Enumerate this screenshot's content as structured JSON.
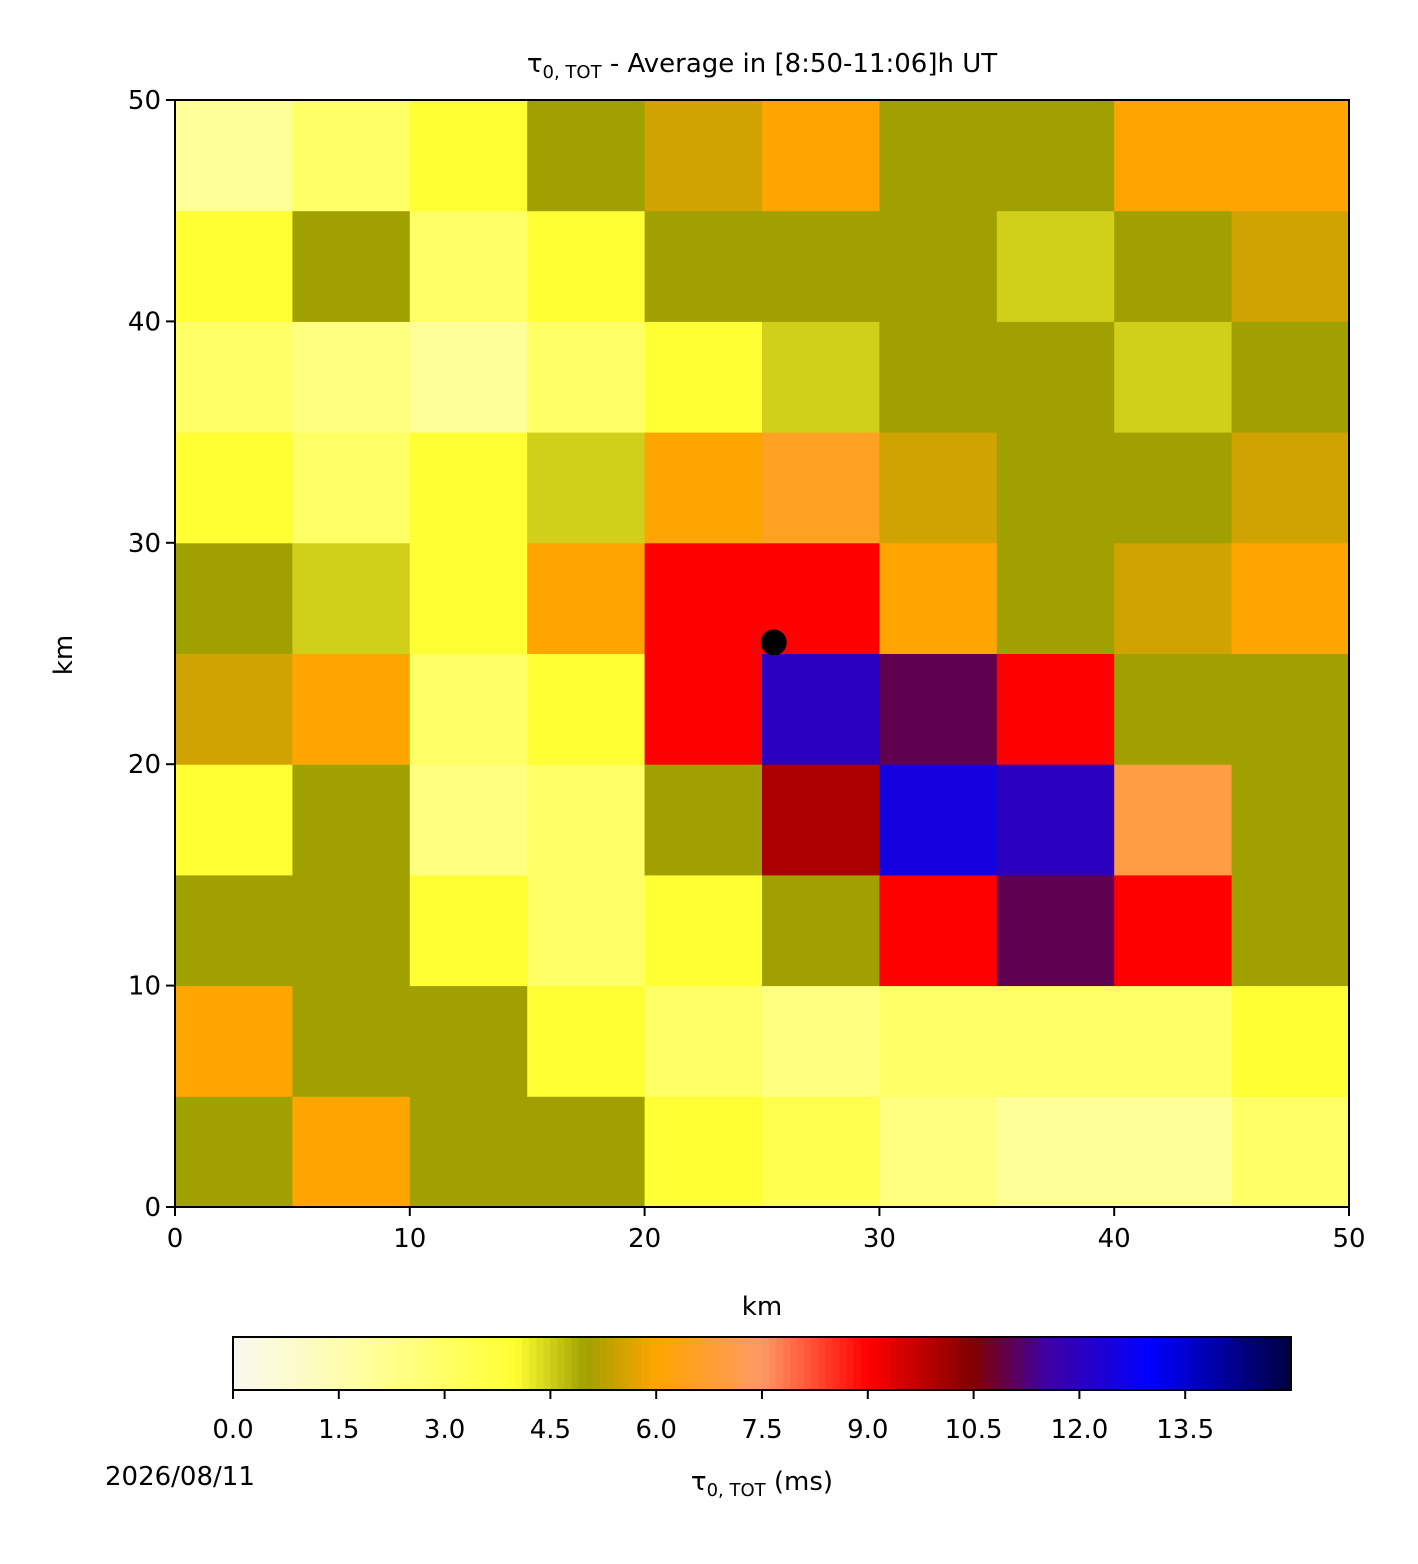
{
  "chart_data": {
    "type": "heatmap",
    "title": {
      "symbol": "τ",
      "subscript": "0, TOT",
      "text": " - Average in [8:50-11:06]h UT"
    },
    "x_label": "km",
    "y_label": "km",
    "xlim": [
      0,
      50
    ],
    "ylim": [
      0,
      50
    ],
    "xticks": [
      0,
      10,
      20,
      30,
      40,
      50
    ],
    "yticks": [
      0,
      10,
      20,
      30,
      40,
      50
    ],
    "x": [
      2.5,
      7.5,
      12.5,
      17.5,
      22.5,
      27.5,
      32.5,
      37.5,
      42.5,
      47.5
    ],
    "y": [
      2.5,
      7.5,
      12.5,
      17.5,
      22.5,
      27.5,
      32.5,
      37.5,
      42.5,
      47.5
    ],
    "z": [
      [
        5,
        6,
        5,
        5,
        4,
        3.5,
        2.5,
        2,
        2,
        3
      ],
      [
        6,
        5,
        5,
        4,
        3,
        2.5,
        3,
        3,
        3,
        4
      ],
      [
        5,
        5,
        4,
        3,
        4,
        5,
        9,
        11,
        9,
        5
      ],
      [
        4,
        5,
        2.5,
        3,
        5,
        10,
        12.5,
        12,
        7,
        5
      ],
      [
        5.5,
        6,
        3,
        4,
        9,
        12,
        11,
        9,
        5,
        5
      ],
      [
        5,
        4.5,
        4,
        6,
        9,
        9,
        6,
        5,
        5.5,
        6
      ],
      [
        4,
        3,
        4,
        4.5,
        6,
        6.5,
        5.5,
        5,
        5,
        5.5
      ],
      [
        3,
        2.5,
        2,
        3,
        4,
        4.5,
        5,
        5,
        4.5,
        5
      ],
      [
        4,
        5,
        3,
        4,
        5,
        5,
        5,
        4.5,
        5,
        5.5
      ],
      [
        2,
        3,
        4,
        5,
        5.5,
        6,
        5,
        5,
        6,
        6
      ]
    ],
    "marker": {
      "x": 25.5,
      "y": 25.5,
      "color": "#000000"
    },
    "colormap": [
      [
        0,
        "#f8f8f0"
      ],
      [
        2,
        "#ffff99"
      ],
      [
        4,
        "#ffff33"
      ],
      [
        5,
        "#a0a000"
      ],
      [
        6,
        "#ffa500"
      ],
      [
        7.5,
        "#ff9966"
      ],
      [
        9,
        "#ff0000"
      ],
      [
        10.5,
        "#800000"
      ],
      [
        11.5,
        "#4000a0"
      ],
      [
        13,
        "#0000ff"
      ],
      [
        15,
        "#000040"
      ]
    ],
    "clim": [
      0,
      15
    ],
    "cticks": [
      {
        "value": 0,
        "label": "0.0"
      },
      1.5,
      {
        "value": 3,
        "label": "3.0"
      },
      4.5,
      {
        "value": 6,
        "label": "6.0"
      },
      7.5,
      {
        "value": 9,
        "label": "9.0"
      },
      10.5,
      {
        "value": 12,
        "label": "12.0"
      },
      13.5
    ],
    "colorbar_label": {
      "symbol": "τ",
      "subscript": "0, TOT",
      "text": " (ms)"
    },
    "date": "2026/08/11"
  }
}
